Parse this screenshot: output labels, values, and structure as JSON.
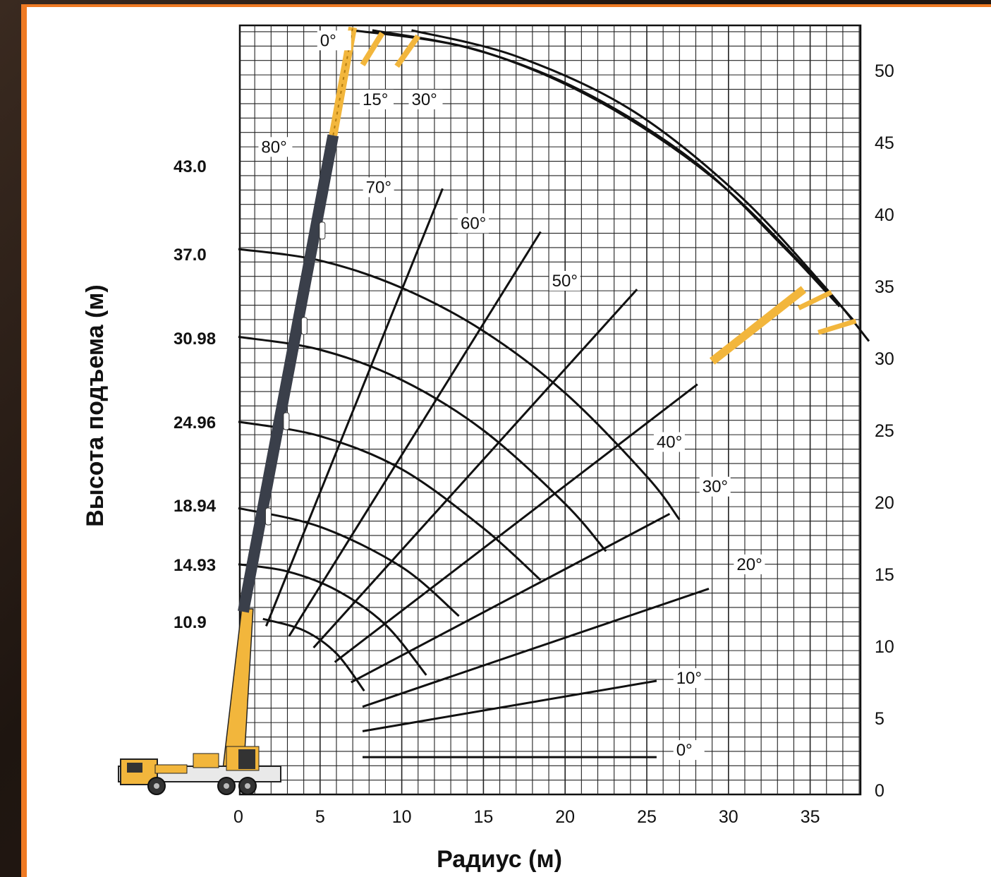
{
  "chart_data": {
    "type": "line",
    "title": "",
    "xlabel": "Радиус (м)",
    "ylabel": "Высота подъема (м)",
    "xlim": [
      -14.3,
      38
    ],
    "ylim": [
      0,
      53
    ],
    "x_ticks": [
      "0",
      "5",
      "10",
      "15",
      "20",
      "25",
      "30",
      "35"
    ],
    "x_tick_values": [
      0,
      5,
      10,
      15,
      20,
      25,
      30,
      35
    ],
    "y_ticks_right": [
      "0",
      "5",
      "10",
      "15",
      "20",
      "25",
      "30",
      "35",
      "40",
      "45",
      "50"
    ],
    "y_tick_values": [
      0,
      5,
      10,
      15,
      20,
      25,
      30,
      35,
      40,
      45,
      50
    ],
    "boom_length_labels": [
      {
        "label": "43.0",
        "value": 43.0
      },
      {
        "label": "37.0",
        "value": 37.0
      },
      {
        "label": "30.98",
        "value": 30.98
      },
      {
        "label": "24.96",
        "value": 24.96
      },
      {
        "label": "18.94",
        "value": 18.94
      },
      {
        "label": "14.93",
        "value": 14.93
      },
      {
        "label": "10.9",
        "value": 10.9
      }
    ],
    "grid": true,
    "pivot": {
      "x": 0.3,
      "y": 12.4
    },
    "height_curves": [
      {
        "boom_length": 37.0,
        "points": [
          [
            0,
            37.6
          ],
          [
            5,
            36.8
          ],
          [
            10,
            34.9
          ],
          [
            15,
            31.9
          ],
          [
            20,
            27.6
          ],
          [
            25,
            21.8
          ],
          [
            27,
            18.8
          ]
        ]
      },
      {
        "boom_length": 30.98,
        "points": [
          [
            0,
            31.5
          ],
          [
            5,
            30.6
          ],
          [
            10,
            28.5
          ],
          [
            15,
            25.0
          ],
          [
            20,
            19.9
          ],
          [
            22.5,
            16.6
          ]
        ]
      },
      {
        "boom_length": 24.96,
        "points": [
          [
            0,
            25.6
          ],
          [
            5,
            24.6
          ],
          [
            10,
            22.3
          ],
          [
            15,
            18.2
          ],
          [
            18.5,
            14.6
          ]
        ]
      },
      {
        "boom_length": 18.94,
        "points": [
          [
            0,
            19.6
          ],
          [
            5,
            18.3
          ],
          [
            10,
            15.5
          ],
          [
            13.5,
            12.1
          ]
        ]
      },
      {
        "boom_length": 14.93,
        "points": [
          [
            0,
            15.7
          ],
          [
            3,
            15.2
          ],
          [
            6,
            13.9
          ],
          [
            9,
            11.5
          ],
          [
            11.5,
            8.0
          ]
        ]
      },
      {
        "boom_length": 10.9,
        "points": [
          [
            1.5,
            11.9
          ],
          [
            4,
            11.1
          ],
          [
            6,
            9.5
          ],
          [
            7.7,
            6.9
          ]
        ]
      }
    ],
    "angle_rays": [
      {
        "label": "70°",
        "start": [
          1.7,
          11.4
        ],
        "end": [
          12.5,
          41.8
        ],
        "label_pos": [
          7.8,
          41.5
        ]
      },
      {
        "label": "60°",
        "start": [
          3.1,
          10.7
        ],
        "end": [
          18.5,
          38.8
        ],
        "label_pos": [
          13.6,
          39.0
        ]
      },
      {
        "label": "50°",
        "start": [
          4.6,
          9.9
        ],
        "end": [
          24.4,
          34.8
        ],
        "label_pos": [
          19.2,
          35.0
        ]
      },
      {
        "label": "40°",
        "start": [
          5.9,
          8.9
        ],
        "end": [
          28.1,
          28.2
        ],
        "label_pos": [
          25.6,
          23.8
        ]
      },
      {
        "label": "30°",
        "start": [
          6.9,
          7.5
        ],
        "end": [
          26.4,
          19.2
        ],
        "label_pos": [
          28.4,
          20.7
        ]
      },
      {
        "label": "20°",
        "start": [
          7.6,
          5.8
        ],
        "end": [
          28.8,
          14.0
        ],
        "label_pos": [
          30.5,
          15.3
        ]
      },
      {
        "label": "10°",
        "start": [
          7.6,
          4.1
        ],
        "end": [
          25.6,
          7.6
        ],
        "label_pos": [
          26.8,
          7.4
        ]
      },
      {
        "label": "0°",
        "start": [
          7.6,
          2.3
        ],
        "end": [
          25.6,
          2.3
        ],
        "label_pos": [
          26.8,
          2.4
        ]
      }
    ],
    "main_boom": {
      "base": [
        0.3,
        12.4
      ],
      "top": [
        5.8,
        45.5
      ],
      "label": "80°",
      "label_pos": [
        1.4,
        44.3
      ]
    },
    "jib": {
      "base": [
        5.8,
        45.5
      ],
      "tip": [
        7.0,
        53.0
      ],
      "labels": [
        {
          "label": "0°",
          "pos": [
            5.0,
            51.7
          ]
        },
        {
          "label": "15°",
          "pos": [
            7.6,
            47.6
          ]
        },
        {
          "label": "30°",
          "pos": [
            10.6,
            47.6
          ]
        }
      ]
    },
    "jib_arcs": [
      {
        "name": "0°",
        "points": [
          [
            7.0,
            52.8
          ],
          [
            14,
            51.6
          ],
          [
            21,
            48.6
          ],
          [
            28,
            43.6
          ],
          [
            33.5,
            37.6
          ],
          [
            36.8,
            33.6
          ]
        ]
      },
      {
        "name": "15°",
        "points": [
          [
            8.2,
            52.8
          ],
          [
            15,
            51.3
          ],
          [
            22,
            47.9
          ],
          [
            29,
            42.6
          ],
          [
            34.8,
            36.2
          ],
          [
            37.7,
            32.6
          ]
        ]
      },
      {
        "name": "30°",
        "points": [
          [
            10.6,
            52.8
          ],
          [
            17,
            51.0
          ],
          [
            24,
            47.3
          ],
          [
            30.5,
            41.5
          ],
          [
            35.8,
            35.1
          ],
          [
            38.6,
            31.2
          ]
        ]
      }
    ]
  }
}
